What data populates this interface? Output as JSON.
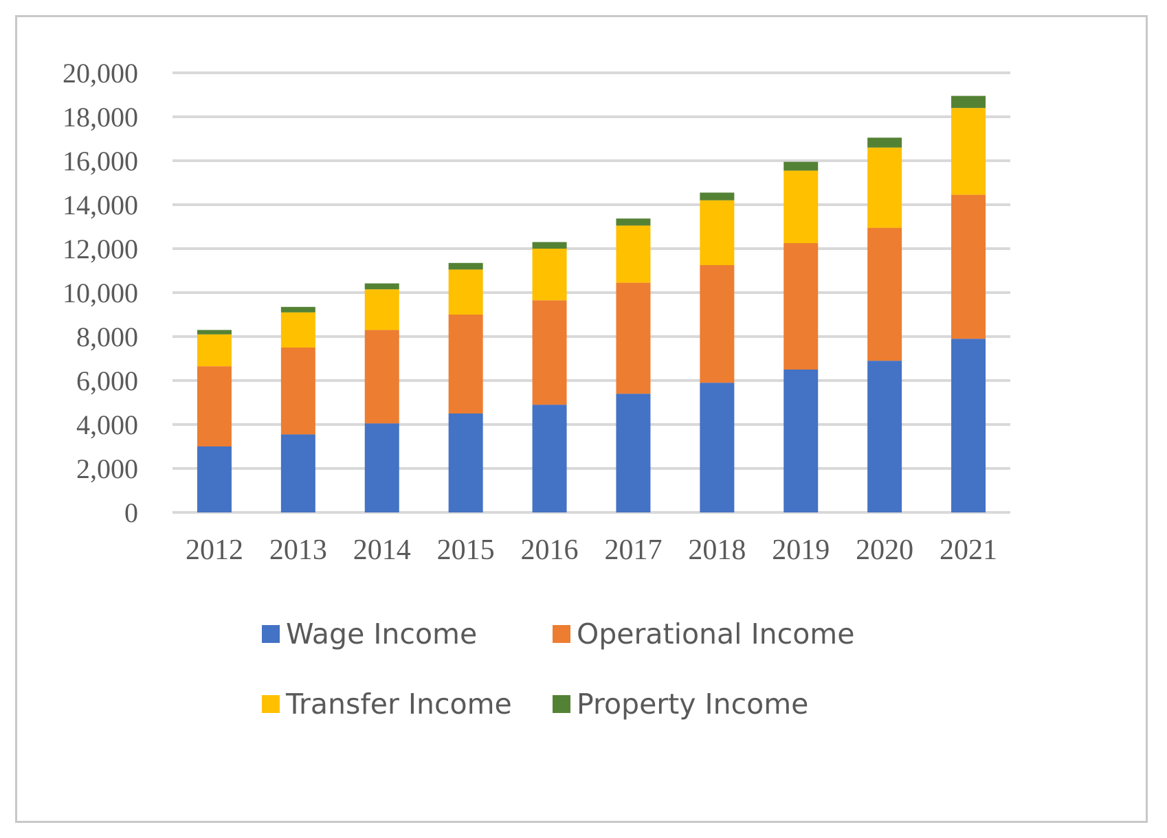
{
  "chart_data": {
    "type": "bar",
    "stacked": true,
    "categories": [
      "2012",
      "2013",
      "2014",
      "2015",
      "2016",
      "2017",
      "2018",
      "2019",
      "2020",
      "2021"
    ],
    "series": [
      {
        "name": "Wage Income",
        "color": "#4472c4",
        "values": [
          3000,
          3550,
          4050,
          4500,
          4900,
          5400,
          5900,
          6500,
          6900,
          7900
        ]
      },
      {
        "name": "Operational Income",
        "color": "#ed7d31",
        "values": [
          3650,
          3950,
          4250,
          4500,
          4750,
          5050,
          5350,
          5750,
          6050,
          6550
        ]
      },
      {
        "name": "Transfer Income",
        "color": "#ffc000",
        "values": [
          1450,
          1600,
          1850,
          2050,
          2350,
          2600,
          2950,
          3300,
          3650,
          3950
        ]
      },
      {
        "name": "Property Income",
        "color": "#548235",
        "values": [
          200,
          250,
          270,
          300,
          300,
          320,
          350,
          400,
          450,
          550
        ]
      }
    ],
    "y_ticks": [
      "0",
      "2,000",
      "4,000",
      "6,000",
      "8,000",
      "10,000",
      "12,000",
      "14,000",
      "16,000",
      "18,000",
      "20,000"
    ],
    "ylim": [
      0,
      20000
    ],
    "grid": true,
    "gridline_color": "#d9d9d9",
    "legend_position": "bottom",
    "title": "",
    "xlabel": "",
    "ylabel": ""
  }
}
